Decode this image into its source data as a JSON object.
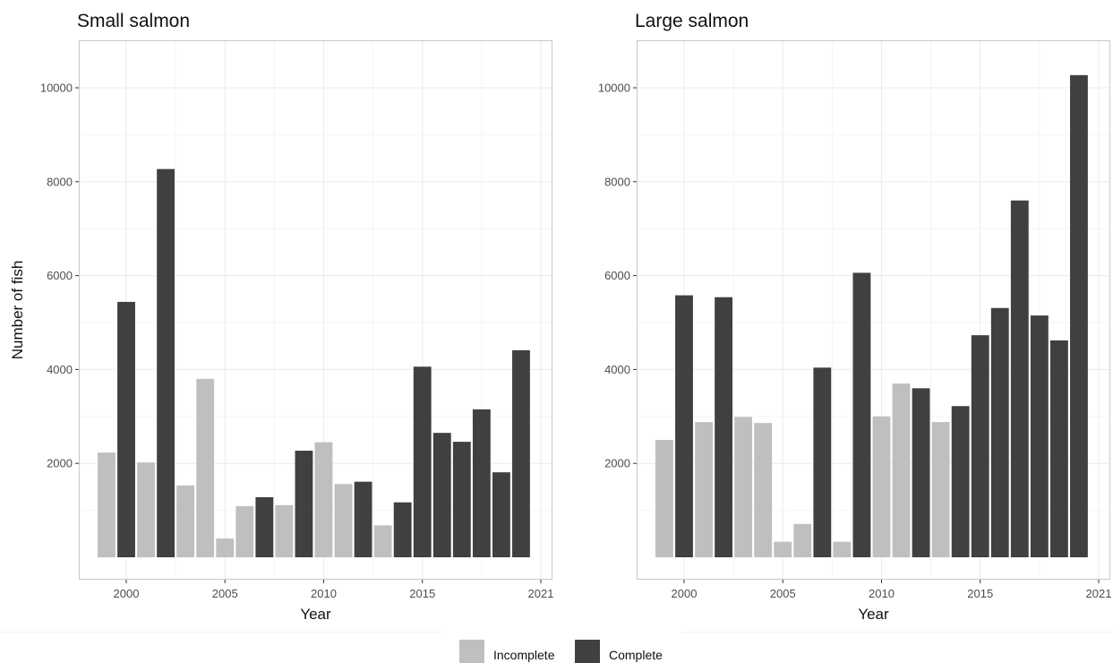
{
  "chart_data": [
    {
      "type": "bar",
      "title": "Small salmon",
      "xlabel": "Year",
      "ylabel": "Number of fish",
      "xlim": [
        1998,
        2021
      ],
      "ylim": [
        0,
        11000
      ],
      "x_ticks": [
        "2000",
        "2005",
        "2010",
        "2015",
        "2021"
      ],
      "y_ticks": [
        "2000",
        "4000",
        "6000",
        "8000",
        "10000"
      ],
      "grid": true,
      "x": [
        1999,
        2000,
        2001,
        2002,
        2003,
        2004,
        2005,
        2006,
        2007,
        2008,
        2009,
        2010,
        2011,
        2012,
        2013,
        2014,
        2015,
        2016,
        2017,
        2018,
        2019,
        2020
      ],
      "values": [
        2230,
        5440,
        2020,
        8270,
        1530,
        3800,
        400,
        1090,
        1280,
        1110,
        2270,
        2450,
        1560,
        1610,
        680,
        1170,
        4060,
        2650,
        2460,
        3150,
        1810,
        4410
      ],
      "status": [
        "Incomplete",
        "Complete",
        "Incomplete",
        "Complete",
        "Incomplete",
        "Incomplete",
        "Incomplete",
        "Incomplete",
        "Complete",
        "Incomplete",
        "Complete",
        "Incomplete",
        "Incomplete",
        "Complete",
        "Incomplete",
        "Complete",
        "Complete",
        "Complete",
        "Complete",
        "Complete",
        "Complete",
        "Complete"
      ]
    },
    {
      "type": "bar",
      "title": "Large salmon",
      "xlabel": "Year",
      "ylabel": "",
      "xlim": [
        1998,
        2021
      ],
      "ylim": [
        0,
        11000
      ],
      "x_ticks": [
        "2000",
        "2005",
        "2010",
        "2015",
        "2021"
      ],
      "y_ticks": [
        "2000",
        "4000",
        "6000",
        "8000",
        "10000"
      ],
      "grid": true,
      "x": [
        1999,
        2000,
        2001,
        2002,
        2003,
        2004,
        2005,
        2006,
        2007,
        2008,
        2009,
        2010,
        2011,
        2012,
        2013,
        2014,
        2015,
        2016,
        2017,
        2018,
        2019,
        2020
      ],
      "values": [
        2500,
        5580,
        2880,
        5540,
        2990,
        2860,
        330,
        710,
        4040,
        330,
        6060,
        3000,
        3700,
        3600,
        2880,
        3220,
        4730,
        5310,
        7600,
        5150,
        4620,
        10270
      ],
      "status": [
        "Incomplete",
        "Complete",
        "Incomplete",
        "Complete",
        "Incomplete",
        "Incomplete",
        "Incomplete",
        "Incomplete",
        "Complete",
        "Incomplete",
        "Complete",
        "Incomplete",
        "Incomplete",
        "Complete",
        "Incomplete",
        "Complete",
        "Complete",
        "Complete",
        "Complete",
        "Complete",
        "Complete",
        "Complete"
      ]
    }
  ],
  "legend": {
    "position": "bottom",
    "items": [
      {
        "label": "Incomplete",
        "color": "#bfbfbf"
      },
      {
        "label": "Complete",
        "color": "#404040"
      }
    ]
  },
  "colors": {
    "incomplete": "#bfbfbf",
    "complete": "#404040",
    "grid": "#ebebeb",
    "panel_border": "#c8c8c8"
  }
}
